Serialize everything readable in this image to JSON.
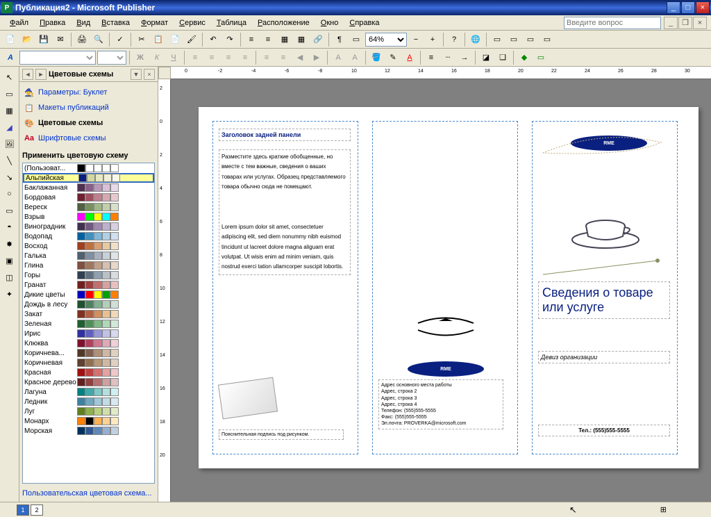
{
  "title": "Публикация2 - Microsoft Publisher",
  "menus": [
    "Файл",
    "Правка",
    "Вид",
    "Вставка",
    "Формат",
    "Сервис",
    "Таблица",
    "Расположение",
    "Окно",
    "Справка"
  ],
  "help_placeholder": "Введите вопрос",
  "zoom": "64%",
  "taskpane": {
    "title": "Цветовые схемы",
    "link_params": "Параметры: Буклет",
    "link_layouts": "Макеты публикаций",
    "link_colors": "Цветовые схемы",
    "link_fonts": "Шрифтовые схемы",
    "apply_label": "Применить цветовую схему",
    "custom_link": "Пользовательская цветовая схема..."
  },
  "schemes": [
    {
      "name": "(Пользоват...",
      "colors": [
        "#000000",
        "#ffffff",
        "#ffffff",
        "#ffffff",
        "#ffffff"
      ]
    },
    {
      "name": "Альпийская",
      "colors": [
        "#0a2080",
        "#d0d8a0",
        "#e8e8c0",
        "#f0f0d8",
        "#f8f8e8"
      ],
      "selected": true
    },
    {
      "name": "Баклажанная",
      "colors": [
        "#503050",
        "#886088",
        "#b898b8",
        "#d8c0d8",
        "#e8d8e8"
      ]
    },
    {
      "name": "Бордовая",
      "colors": [
        "#702030",
        "#a05060",
        "#c08090",
        "#d8a8b0",
        "#e8c8d0"
      ]
    },
    {
      "name": "Вереск",
      "colors": [
        "#506040",
        "#789060",
        "#a0b888",
        "#c0d0a8",
        "#d8e0c8"
      ]
    },
    {
      "name": "Взрыв",
      "colors": [
        "#ff00ff",
        "#00ff00",
        "#ffff00",
        "#00ffff",
        "#ff8000"
      ]
    },
    {
      "name": "Виноградник",
      "colors": [
        "#403050",
        "#705880",
        "#a088b0",
        "#c0b0d0",
        "#d8d0e0"
      ]
    },
    {
      "name": "Водопад",
      "colors": [
        "#0060a0",
        "#4090c0",
        "#80b8d8",
        "#b0d0e8",
        "#d0e0f0"
      ]
    },
    {
      "name": "Восход",
      "colors": [
        "#a04020",
        "#c07040",
        "#d8a070",
        "#e8c8a0",
        "#f0e0c8"
      ]
    },
    {
      "name": "Галька",
      "colors": [
        "#506070",
        "#8090a0",
        "#a8b0c0",
        "#c8d0d8",
        "#e0e4e8"
      ]
    },
    {
      "name": "Глина",
      "colors": [
        "#805040",
        "#a07860",
        "#c0a088",
        "#d8c0b0",
        "#e8d8c8"
      ]
    },
    {
      "name": "Горы",
      "colors": [
        "#304050",
        "#607080",
        "#90a0b0",
        "#b8c0c8",
        "#d8dce0"
      ]
    },
    {
      "name": "Гранат",
      "colors": [
        "#702020",
        "#a04040",
        "#c07070",
        "#d8a0a0",
        "#e8c0c0"
      ]
    },
    {
      "name": "Дикие цветы",
      "colors": [
        "#0000c0",
        "#ff0000",
        "#ffff00",
        "#00a000",
        "#ff8000"
      ]
    },
    {
      "name": "Дождь в лесу",
      "colors": [
        "#205030",
        "#508060",
        "#80b090",
        "#b0d0b8",
        "#d0e0d8"
      ]
    },
    {
      "name": "Закат",
      "colors": [
        "#803020",
        "#b06040",
        "#d09060",
        "#e8c090",
        "#f0d8b8"
      ]
    },
    {
      "name": "Зеленая",
      "colors": [
        "#206030",
        "#509058",
        "#80b888",
        "#b0d8b8",
        "#d0e8d8"
      ]
    },
    {
      "name": "Ирис",
      "colors": [
        "#3030a0",
        "#6060c0",
        "#9898d8",
        "#c0c0e8",
        "#d8d8f0"
      ]
    },
    {
      "name": "Клюква",
      "colors": [
        "#801030",
        "#b04060",
        "#d07890",
        "#e0a8b8",
        "#f0d0d8"
      ]
    },
    {
      "name": "Коричнева...",
      "colors": [
        "#503828",
        "#806050",
        "#b09078",
        "#d0b8a0",
        "#e0d0c0"
      ]
    },
    {
      "name": "Коричневая",
      "colors": [
        "#604030",
        "#907050",
        "#b89878",
        "#d0b8a0",
        "#e0d0c0"
      ]
    },
    {
      "name": "Красная",
      "colors": [
        "#a01010",
        "#c04040",
        "#d87070",
        "#e8a0a0",
        "#f0c8c8"
      ]
    },
    {
      "name": "Красное дерево",
      "colors": [
        "#602020",
        "#904040",
        "#b87070",
        "#d0a0a0",
        "#e0c0c0"
      ]
    },
    {
      "name": "Лагуна",
      "colors": [
        "#008080",
        "#40a8a8",
        "#80c8c8",
        "#b0e0e0",
        "#d0f0f0"
      ]
    },
    {
      "name": "Ледник",
      "colors": [
        "#4080a0",
        "#70a8c0",
        "#a0c8d8",
        "#c0dce8",
        "#d8e8f0"
      ]
    },
    {
      "name": "Луг",
      "colors": [
        "#608020",
        "#90b050",
        "#b8d080",
        "#d0e0a8",
        "#e0ecc8"
      ]
    },
    {
      "name": "Монарх",
      "colors": [
        "#ff8000",
        "#000000",
        "#ffb050",
        "#ffd090",
        "#ffe8c0"
      ]
    },
    {
      "name": "Морская",
      "colors": [
        "#003060",
        "#305890",
        "#6088b8",
        "#98b0d0",
        "#c0d0e0"
      ]
    }
  ],
  "brochure": {
    "back_heading": "Заголовок задней панели",
    "back_body": "Разместите здесь краткие обобщенные, но вместе с тем важные, сведения о ваших товарах или услугах. Образец представляемого товара обычно сюда не помещают.\n\nLorem ipsum dolor sit amet, consectetuer adipiscing elit, sed diem nonummy nibh euismod tincidunt ut lacreet dolore magna aliguam erat volutpat. Ut wisis enim ad minim veniam, quis nostrud exerci tation ullamcorper suscipit lobortis.",
    "caption": "Пояснительная подпись под рисунком.",
    "org_label": "RME",
    "address": "Адрес основного места работы\nАдрес, строка 2\nАдрес, строка 3\nАдрес, строка 4\nТелефон: (555)555-5555\nФакс: (555)555-5555\nЭл.почта: PROVERKA@microsoft.com",
    "front_title": "Сведения о товаре или услуге",
    "motto": "Девиз организации",
    "tel": "Тел.: (555)555-5555"
  },
  "pages": [
    "1",
    "2"
  ],
  "ruler_h": [
    "0",
    "-2",
    "-4",
    "-6",
    "-8",
    "10",
    "12",
    "14",
    "16",
    "18",
    "20",
    "22",
    "24",
    "26",
    "28",
    "30"
  ],
  "ruler_v": [
    "2",
    "0",
    "2",
    "4",
    "6",
    "8",
    "10",
    "12",
    "14",
    "16",
    "18",
    "20"
  ]
}
